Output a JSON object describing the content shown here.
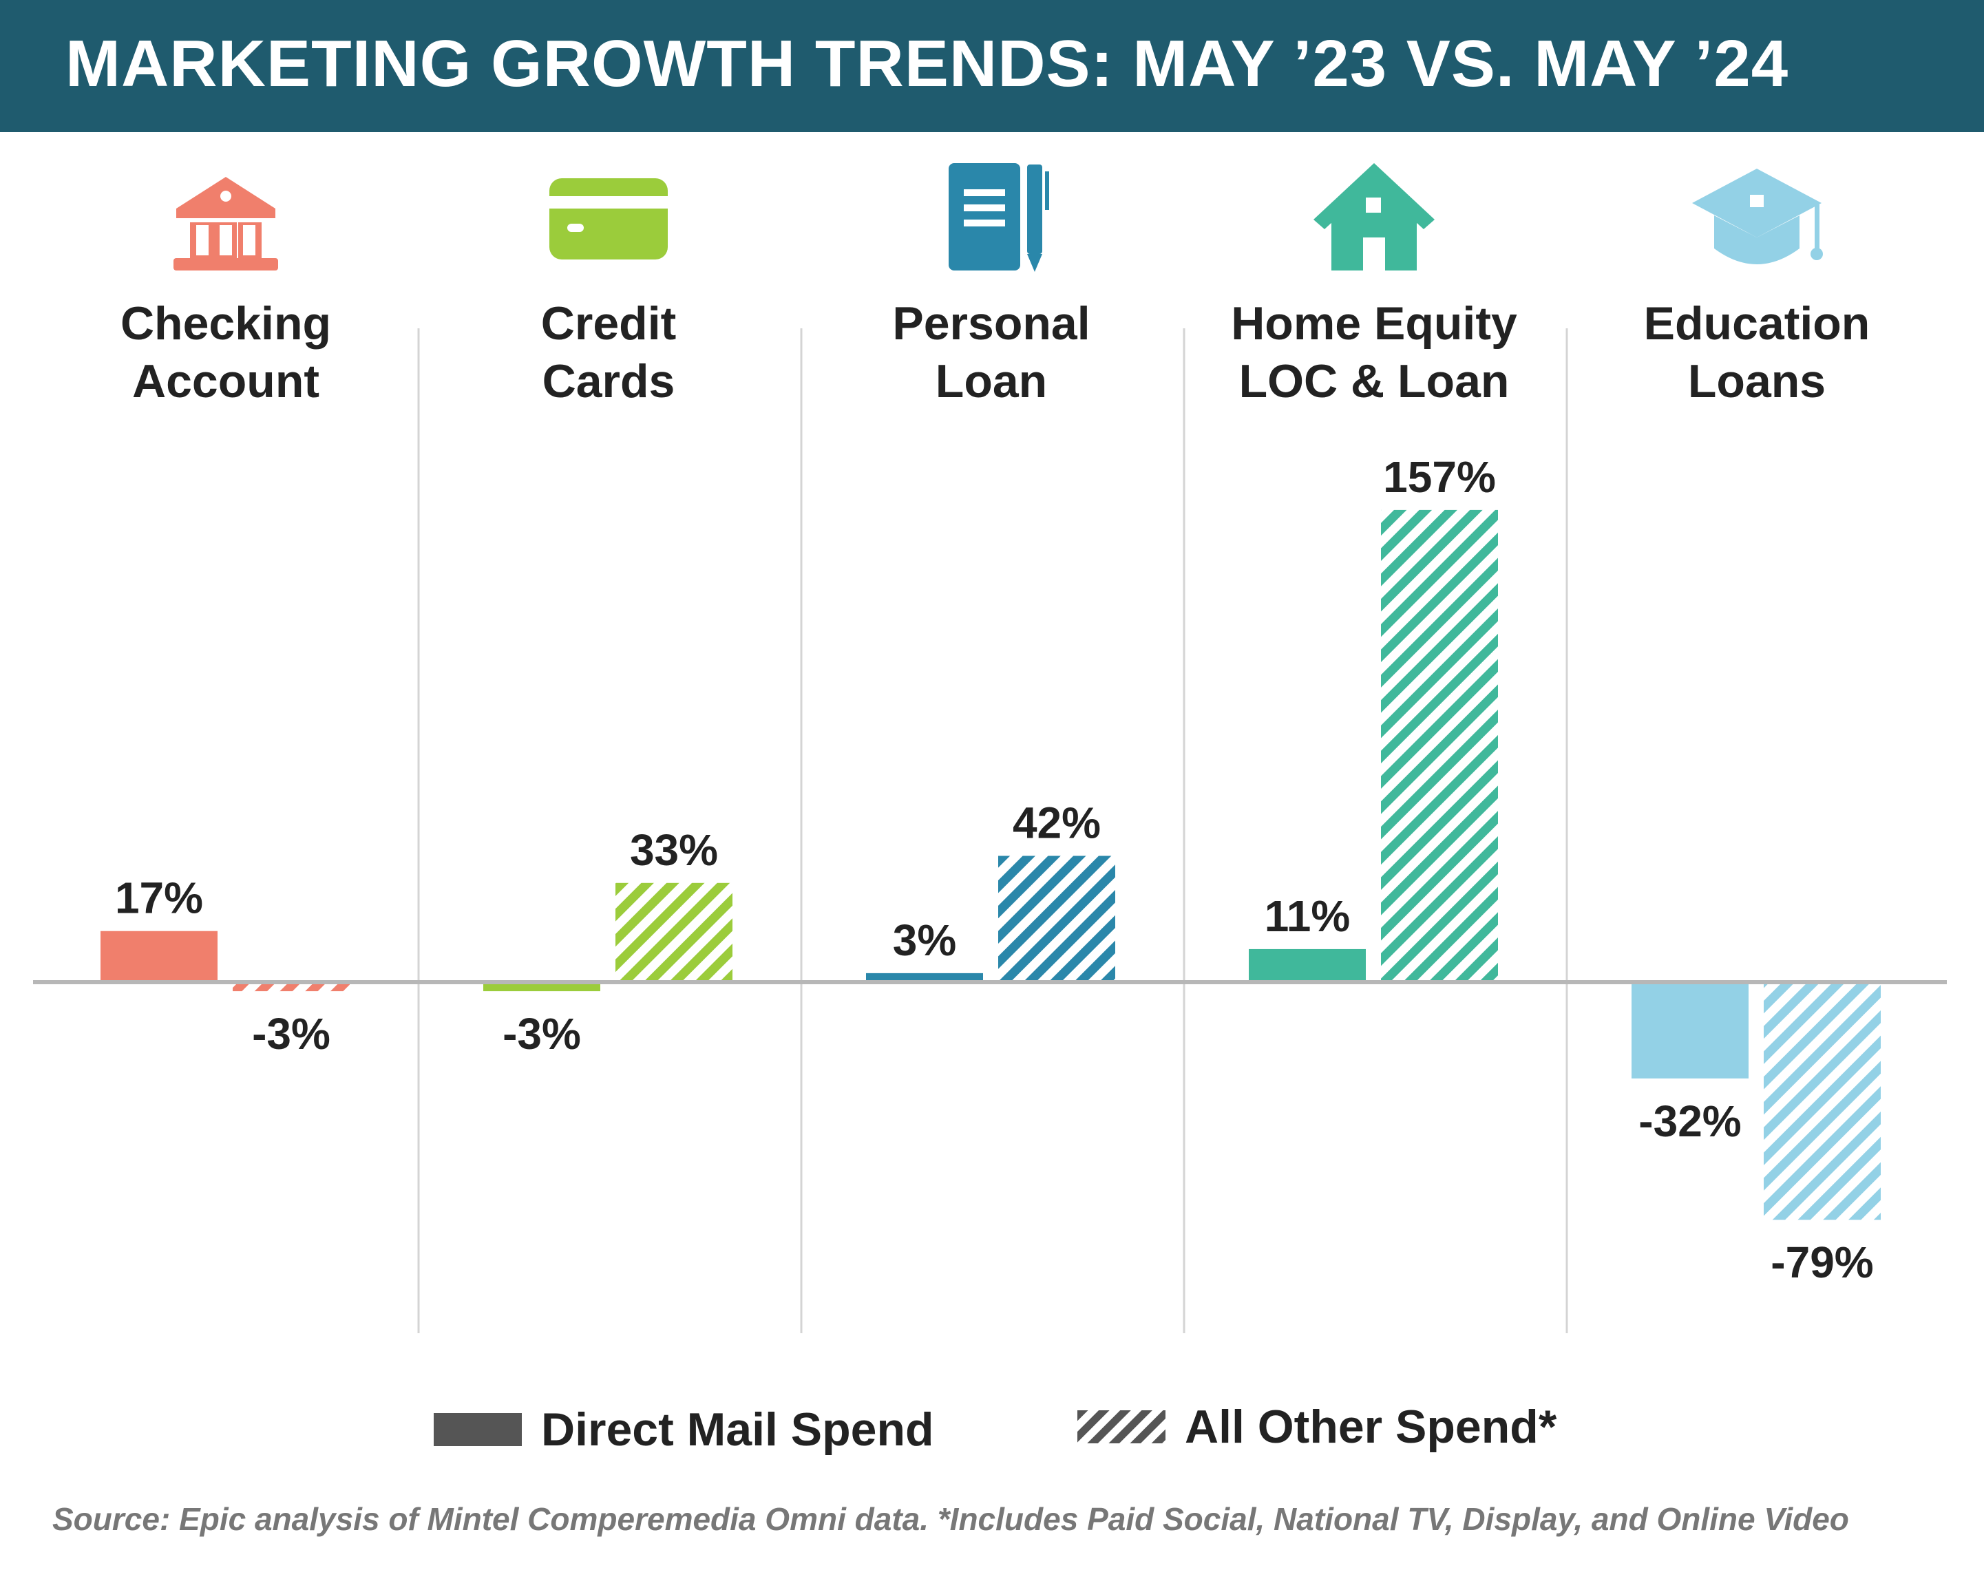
{
  "header": {
    "title": "MARKETING GROWTH TRENDS: MAY ’23 VS. MAY ’24"
  },
  "chart_data": {
    "type": "bar",
    "title": "MARKETING GROWTH TRENDS: MAY ’23 VS. MAY ’24",
    "categories": [
      {
        "lines": [
          "Checking",
          "Account"
        ],
        "icon": "bank-icon",
        "color": "#f07f6c"
      },
      {
        "lines": [
          "Credit",
          "Cards"
        ],
        "icon": "credit-card-icon",
        "color": "#9bcc3b"
      },
      {
        "lines": [
          "Personal",
          "Loan"
        ],
        "icon": "notebook-pen-icon",
        "color": "#2a87aa"
      },
      {
        "lines": [
          "Home Equity",
          "LOC & Loan"
        ],
        "icon": "house-icon",
        "color": "#40b89b"
      },
      {
        "lines": [
          "Education",
          "Loans"
        ],
        "icon": "graduation-cap-icon",
        "color": "#93d1e6"
      }
    ],
    "series": [
      {
        "name": "Direct Mail Spend",
        "style": "solid",
        "values": [
          17,
          -3,
          3,
          11,
          -32
        ],
        "labels": [
          "17%",
          "-3%",
          "3%",
          "11%",
          "-32%"
        ]
      },
      {
        "name": "All Other Spend*",
        "style": "hatched",
        "values": [
          -3,
          33,
          42,
          157,
          -79
        ],
        "labels": [
          "-3%",
          "33%",
          "42%",
          "157%",
          "-79%"
        ]
      }
    ],
    "ylim": [
      -79,
      157
    ],
    "legend_position": "bottom",
    "grid": false
  },
  "legend": {
    "direct_mail": "Direct Mail Spend",
    "all_other": "All Other Spend*",
    "swatch_color": "#555555"
  },
  "source": "Source: Epic analysis of Mintel Comperemedia Omni data. *Includes Paid Social, National TV, Display, and Online Video"
}
